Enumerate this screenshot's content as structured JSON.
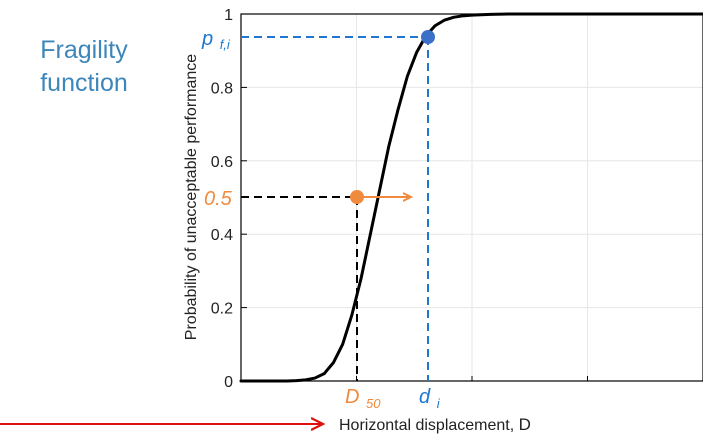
{
  "title_lines": [
    "Fragility",
    "function"
  ],
  "colors": {
    "title": "#3C86B9",
    "curve": "#000000",
    "blue": "#1F77D0",
    "blue_point": "#3C70C8",
    "orange": "#F08A3C",
    "red_arrow": "#E01010",
    "grid": "#E6E6E6"
  },
  "chart_data": {
    "type": "line",
    "title": "Fragility function",
    "xlabel_main": "Horizontal displacement, ",
    "xlabel_var": "D",
    "ylabel": "Probability of unacceptable performance",
    "ylim": [
      0,
      1
    ],
    "xlim": [
      0,
      1
    ],
    "yticks": [
      0,
      0.2,
      0.4,
      0.6,
      0.8,
      1
    ],
    "ytick_labels": [
      "0",
      "0.2",
      "0.4",
      "0.6",
      "0.8",
      "1"
    ],
    "xticks": [
      0.25,
      0.5,
      0.75
    ],
    "grid": true,
    "x_tick_labels_shown": false,
    "series": [
      {
        "x": [
          0,
          0.02,
          0.04,
          0.06,
          0.08,
          0.1,
          0.12,
          0.14,
          0.16,
          0.18,
          0.2,
          0.22,
          0.24,
          0.26,
          0.28,
          0.3,
          0.32,
          0.34,
          0.36,
          0.38,
          0.4,
          0.42,
          0.44,
          0.46,
          0.48,
          0.5,
          0.54,
          0.58,
          0.62,
          0.66,
          0.7,
          0.75,
          0.8,
          0.9,
          1
        ],
        "y": [
          0,
          0,
          0,
          0,
          0,
          0,
          0.001,
          0.003,
          0.008,
          0.02,
          0.05,
          0.1,
          0.18,
          0.28,
          0.4,
          0.52,
          0.64,
          0.74,
          0.83,
          0.895,
          0.94,
          0.968,
          0.983,
          0.991,
          0.995,
          0.997,
          0.999,
          1,
          1,
          1,
          1,
          1,
          1,
          1,
          1
        ]
      }
    ],
    "annotations": {
      "median": {
        "label_main": "D",
        "label_sub": "50",
        "x": 0.295,
        "y": 0.5,
        "y_label": "0.5"
      },
      "design_point": {
        "label_main": "d",
        "label_sub": "i",
        "x": 0.413,
        "y": 0.962,
        "y_label_main": "p",
        "y_label_sub": "f,i"
      }
    }
  }
}
